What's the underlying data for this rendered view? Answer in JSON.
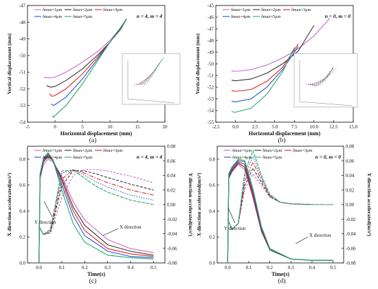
{
  "figure": {
    "panel_labels": [
      "(a)",
      "(b)",
      "(c)",
      "(d)"
    ]
  },
  "chart_data": [
    {
      "id": "a",
      "type": "line",
      "title": "n = 4, m = 4",
      "xlabel": "Horizontal displacement (mm)",
      "ylabel": "Vertical displacement (mm)",
      "xlim": [
        -5,
        20
      ],
      "ylim": [
        -54,
        -47
      ],
      "xticks": [
        -5,
        0,
        5,
        10,
        15,
        20
      ],
      "yticks": [
        -54,
        -53,
        -52,
        -51,
        -50,
        -49,
        -48,
        -47
      ],
      "legend_position": "top-left",
      "inset": "3D view of the displacement curves (not legible)",
      "series": [
        {
          "name": "δmax=1μm",
          "color": "#cc66cc",
          "x": [
            -2,
            -1,
            0,
            2,
            5,
            8,
            10,
            12,
            13
          ],
          "y": [
            -51.3,
            -51.35,
            -51.3,
            -51.0,
            -50.4,
            -49.7,
            -49.1,
            -48.3,
            -47.8
          ]
        },
        {
          "name": "δmax=2μm",
          "color": "#333333",
          "x": [
            -1.5,
            -0.8,
            0,
            2,
            5,
            8,
            10,
            12,
            13
          ],
          "y": [
            -51.8,
            -51.9,
            -51.85,
            -51.5,
            -50.8,
            -49.9,
            -49.2,
            -48.4,
            -47.8
          ]
        },
        {
          "name": "δmax=3μm",
          "color": "#dd2222",
          "x": [
            -1,
            -0.5,
            0,
            2,
            5,
            8,
            10,
            12,
            13
          ],
          "y": [
            -52.3,
            -52.45,
            -52.4,
            -52.0,
            -51.1,
            -50.0,
            -49.2,
            -48.3,
            -47.8
          ]
        },
        {
          "name": "δmax=4μm",
          "color": "#2255cc",
          "x": [
            -0.7,
            -0.3,
            0,
            2,
            5,
            8,
            10,
            12,
            13
          ],
          "y": [
            -52.9,
            -53.0,
            -52.95,
            -52.5,
            -51.4,
            -50.1,
            -49.2,
            -48.3,
            -47.8
          ]
        },
        {
          "name": "δmax=5μm",
          "color": "#22aa66",
          "x": [
            -0.5,
            -0.2,
            0,
            2,
            5,
            8,
            10,
            12,
            13
          ],
          "y": [
            -53.6,
            -53.7,
            -53.6,
            -53.0,
            -51.7,
            -50.2,
            -49.2,
            -48.3,
            -47.8
          ]
        }
      ]
    },
    {
      "id": "b",
      "type": "line",
      "title": "n = 0, m = 0",
      "xlabel": "Horizontal displacement (mm)",
      "ylabel": "Vertical displacement (mm)",
      "xlim": [
        -2.5,
        15
      ],
      "ylim": [
        -55,
        -45
      ],
      "xticks": [
        -2.5,
        0.0,
        2.5,
        5.0,
        7.5,
        10.0,
        12.5,
        15.0
      ],
      "yticks": [
        -55,
        -54,
        -53,
        -52,
        -51,
        -50,
        -49,
        -48,
        -47,
        -46,
        -45
      ],
      "legend_position": "top-left",
      "inset": "3D view of the displacement curves (not legible)",
      "series": [
        {
          "name": "δmax=1μm",
          "color": "#cc66cc",
          "x": [
            -0.5,
            0,
            2,
            4,
            6,
            8,
            10,
            12
          ],
          "y": [
            -50.6,
            -50.65,
            -50.5,
            -50.1,
            -49.5,
            -48.7,
            -47.6,
            -46.1
          ]
        },
        {
          "name": "δmax=2μm",
          "color": "#333333",
          "x": [
            -0.5,
            0,
            2,
            4,
            6,
            8,
            10
          ],
          "y": [
            -51.4,
            -51.45,
            -51.3,
            -50.8,
            -50.0,
            -48.9,
            -46.7
          ]
        },
        {
          "name": "δmax=3μm",
          "color": "#dd2222",
          "x": [
            -0.5,
            0,
            2,
            4,
            6,
            8
          ],
          "y": [
            -52.3,
            -52.35,
            -52.2,
            -51.5,
            -50.3,
            -48.3
          ]
        },
        {
          "name": "δmax=4μm",
          "color": "#2255cc",
          "x": [
            -0.5,
            0,
            2,
            4,
            6,
            8
          ],
          "y": [
            -53.2,
            -53.25,
            -53.0,
            -52.0,
            -50.5,
            -48.5
          ]
        },
        {
          "name": "δmax=5μm",
          "color": "#22aa66",
          "x": [
            -0.5,
            0,
            2,
            4,
            6,
            7.5
          ],
          "y": [
            -54.1,
            -54.15,
            -53.8,
            -52.6,
            -50.7,
            -48.6
          ]
        }
      ]
    },
    {
      "id": "c",
      "type": "line",
      "title": "n = 4, m = 4",
      "xlabel": "Time(s)",
      "ylabel": "X direction accelerated(m/s²)",
      "y2label": "Y direction accelerated(m/s²)",
      "xlim": [
        -0.05,
        0.55
      ],
      "ylim": [
        0,
        0.9
      ],
      "y2lim": [
        -0.08,
        0.08
      ],
      "xticks": [
        0.0,
        0.1,
        0.2,
        0.3,
        0.4,
        0.5
      ],
      "yticks": [
        0.0,
        0.2,
        0.4,
        0.6,
        0.8
      ],
      "y2ticks": [
        -0.08,
        -0.06,
        -0.04,
        -0.02,
        0.0,
        0.02,
        0.04,
        0.06,
        0.08
      ],
      "legend_position": "top-left",
      "annotations": [
        "X direction",
        "Y direction"
      ],
      "x_series": [
        {
          "name": "δmax=1μm",
          "color": "#cc66cc",
          "x": [
            0,
            0.005,
            0.02,
            0.04,
            0.06,
            0.1,
            0.15,
            0.2,
            0.3,
            0.4,
            0.5
          ],
          "y": [
            0,
            0.65,
            0.76,
            0.8,
            0.78,
            0.67,
            0.47,
            0.33,
            0.18,
            0.11,
            0.08
          ]
        },
        {
          "name": "δmax=2μm",
          "color": "#333333",
          "x": [
            0,
            0.005,
            0.02,
            0.04,
            0.06,
            0.1,
            0.15,
            0.2,
            0.3,
            0.4,
            0.5
          ],
          "y": [
            0,
            0.66,
            0.78,
            0.82,
            0.79,
            0.65,
            0.43,
            0.29,
            0.14,
            0.09,
            0.06
          ]
        },
        {
          "name": "δmax=3μm",
          "color": "#dd2222",
          "x": [
            0,
            0.005,
            0.02,
            0.04,
            0.06,
            0.1,
            0.15,
            0.2,
            0.3,
            0.4,
            0.5
          ],
          "y": [
            0,
            0.67,
            0.79,
            0.83,
            0.8,
            0.63,
            0.4,
            0.25,
            0.11,
            0.07,
            0.05
          ]
        },
        {
          "name": "δmax=4μm",
          "color": "#2255cc",
          "x": [
            0,
            0.005,
            0.02,
            0.04,
            0.06,
            0.1,
            0.15,
            0.2,
            0.3,
            0.4,
            0.5
          ],
          "y": [
            0,
            0.68,
            0.8,
            0.84,
            0.8,
            0.6,
            0.36,
            0.21,
            0.09,
            0.05,
            0.04
          ]
        },
        {
          "name": "δmax=5μm",
          "color": "#22aa66",
          "x": [
            0,
            0.005,
            0.02,
            0.04,
            0.06,
            0.1,
            0.15,
            0.2,
            0.3,
            0.4,
            0.5
          ],
          "y": [
            0,
            0.69,
            0.81,
            0.85,
            0.8,
            0.56,
            0.3,
            0.16,
            0.06,
            0.04,
            0.03
          ]
        }
      ],
      "y_series": [
        {
          "name": "δmax=1μm",
          "color": "#cc66cc",
          "x": [
            0,
            0.02,
            0.05,
            0.1,
            0.15,
            0.2,
            0.25,
            0.3,
            0.4,
            0.5
          ],
          "y": [
            -0.03,
            -0.041,
            -0.039,
            0.01,
            0.04,
            0.048,
            0.048,
            0.046,
            0.039,
            0.03
          ]
        },
        {
          "name": "δmax=2μm",
          "color": "#333333",
          "x": [
            0,
            0.02,
            0.05,
            0.1,
            0.15,
            0.2,
            0.25,
            0.3,
            0.4,
            0.5
          ],
          "y": [
            -0.03,
            -0.041,
            -0.038,
            0.025,
            0.047,
            0.046,
            0.042,
            0.037,
            0.028,
            0.02
          ]
        },
        {
          "name": "δmax=3μm",
          "color": "#dd2222",
          "x": [
            0,
            0.02,
            0.05,
            0.1,
            0.15,
            0.2,
            0.25,
            0.3,
            0.4,
            0.5
          ],
          "y": [
            -0.03,
            -0.041,
            -0.037,
            0.035,
            0.048,
            0.043,
            0.036,
            0.03,
            0.02,
            0.013
          ]
        },
        {
          "name": "δmax=4μm",
          "color": "#2255cc",
          "x": [
            0,
            0.02,
            0.05,
            0.1,
            0.15,
            0.2,
            0.25,
            0.3,
            0.4,
            0.5
          ],
          "y": [
            -0.03,
            -0.041,
            -0.035,
            0.043,
            0.048,
            0.04,
            0.031,
            0.024,
            0.013,
            0.006
          ]
        },
        {
          "name": "δmax=5μm",
          "color": "#22aa66",
          "x": [
            0,
            0.02,
            0.05,
            0.1,
            0.15,
            0.2,
            0.25,
            0.3,
            0.4,
            0.5
          ],
          "y": [
            -0.03,
            -0.041,
            -0.034,
            0.046,
            0.047,
            0.036,
            0.025,
            0.017,
            0.006,
            0.0
          ]
        }
      ]
    },
    {
      "id": "d",
      "type": "line",
      "title": "n = 0, m = 0",
      "xlabel": "Time(s)",
      "ylabel": "X direction accelerated(m/s²)",
      "y2label": "Y direction accelerated(m/s²)",
      "xlim": [
        -0.05,
        0.55
      ],
      "ylim": [
        0,
        0.9
      ],
      "y2lim": [
        -0.08,
        0.08
      ],
      "xticks": [
        0.0,
        0.1,
        0.2,
        0.3,
        0.4,
        0.5
      ],
      "yticks": [
        0.0,
        0.2,
        0.4,
        0.6,
        0.8
      ],
      "y2ticks": [
        -0.08,
        -0.06,
        -0.04,
        -0.02,
        0.0,
        0.02,
        0.04,
        0.06,
        0.08
      ],
      "legend_position": "top-left",
      "annotations": [
        "X direction",
        "Y direction"
      ],
      "x_series": [
        {
          "name": "δmax=1μm",
          "color": "#cc66cc",
          "x": [
            0,
            0.005,
            0.02,
            0.05,
            0.08,
            0.12,
            0.16,
            0.2,
            0.3,
            0.4,
            0.5
          ],
          "y": [
            0,
            0.65,
            0.7,
            0.76,
            0.72,
            0.5,
            0.24,
            0.1,
            0.03,
            0.02,
            0.02
          ]
        },
        {
          "name": "δmax=2μm",
          "color": "#333333",
          "x": [
            0,
            0.005,
            0.02,
            0.05,
            0.08,
            0.12,
            0.16,
            0.2,
            0.3,
            0.4,
            0.5
          ],
          "y": [
            0,
            0.66,
            0.71,
            0.77,
            0.74,
            0.52,
            0.25,
            0.1,
            0.03,
            0.02,
            0.02
          ]
        },
        {
          "name": "δmax=3μm",
          "color": "#dd2222",
          "x": [
            0,
            0.005,
            0.02,
            0.05,
            0.08,
            0.12,
            0.16,
            0.2,
            0.3,
            0.4,
            0.5
          ],
          "y": [
            0,
            0.67,
            0.72,
            0.78,
            0.76,
            0.54,
            0.26,
            0.11,
            0.03,
            0.02,
            0.02
          ]
        },
        {
          "name": "δmax=4μm",
          "color": "#2255cc",
          "x": [
            0,
            0.005,
            0.02,
            0.05,
            0.08,
            0.12,
            0.16,
            0.2,
            0.3,
            0.4,
            0.5
          ],
          "y": [
            0,
            0.68,
            0.73,
            0.79,
            0.78,
            0.56,
            0.27,
            0.11,
            0.03,
            0.02,
            0.02
          ]
        },
        {
          "name": "δmax=5μm",
          "color": "#22aa66",
          "x": [
            0,
            0.005,
            0.02,
            0.05,
            0.08,
            0.12,
            0.16,
            0.2,
            0.3,
            0.4,
            0.5
          ],
          "y": [
            0,
            0.69,
            0.74,
            0.8,
            0.79,
            0.57,
            0.28,
            0.11,
            0.03,
            0.02,
            0.02
          ]
        }
      ],
      "y_series": [
        {
          "name": "δmax=1μm",
          "color": "#cc66cc",
          "x": [
            0,
            0.02,
            0.05,
            0.08,
            0.12,
            0.16,
            0.2,
            0.25,
            0.3,
            0.4,
            0.5
          ],
          "y": [
            -0.02,
            -0.034,
            -0.026,
            0.02,
            0.042,
            0.026,
            0.01,
            0.003,
            0.001,
            0.0,
            0.0
          ]
        },
        {
          "name": "δmax=2μm",
          "color": "#333333",
          "x": [
            0,
            0.02,
            0.05,
            0.08,
            0.12,
            0.16,
            0.2,
            0.25,
            0.3,
            0.4,
            0.5
          ],
          "y": [
            -0.02,
            -0.034,
            -0.026,
            0.026,
            0.05,
            0.03,
            0.011,
            0.003,
            0.001,
            0.0,
            0.0
          ]
        },
        {
          "name": "δmax=3μm",
          "color": "#dd2222",
          "x": [
            0,
            0.02,
            0.05,
            0.08,
            0.12,
            0.16,
            0.2,
            0.25,
            0.3,
            0.4,
            0.5
          ],
          "y": [
            -0.02,
            -0.034,
            -0.026,
            0.032,
            0.058,
            0.034,
            0.012,
            0.003,
            0.001,
            0.0,
            0.0
          ]
        },
        {
          "name": "δmax=4μm",
          "color": "#2255cc",
          "x": [
            0,
            0.02,
            0.05,
            0.08,
            0.12,
            0.16,
            0.2,
            0.25,
            0.3,
            0.4,
            0.5
          ],
          "y": [
            -0.02,
            -0.034,
            -0.026,
            0.038,
            0.066,
            0.037,
            0.013,
            0.003,
            0.001,
            0.0,
            0.0
          ]
        },
        {
          "name": "δmax=5μm",
          "color": "#22aa66",
          "x": [
            0,
            0.02,
            0.05,
            0.08,
            0.12,
            0.16,
            0.2,
            0.25,
            0.3,
            0.4,
            0.5
          ],
          "y": [
            -0.02,
            -0.034,
            -0.026,
            0.044,
            0.074,
            0.04,
            0.014,
            0.003,
            0.001,
            0.0,
            0.0
          ]
        }
      ]
    }
  ]
}
